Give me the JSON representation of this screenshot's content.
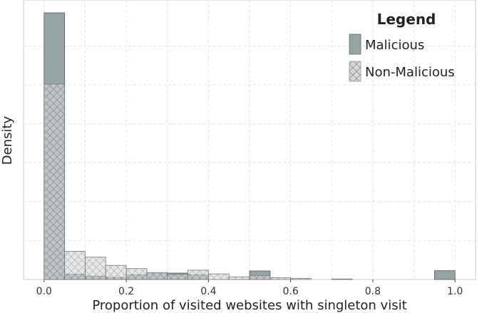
{
  "chart_data": {
    "type": "bar",
    "subtype": "histogram",
    "xlabel": "Proportion of visited websites with singleton visit",
    "ylabel": "Density",
    "xlim": [
      -0.05,
      1.05
    ],
    "ylim": [
      0,
      1
    ],
    "x_ticks": [
      0.0,
      0.2,
      0.4,
      0.6,
      0.8,
      1.0
    ],
    "x_tick_labels": [
      "0.0",
      "0.2",
      "0.4",
      "0.6",
      "0.8",
      "1.0"
    ],
    "y_tick_labels_shown": false,
    "grid": true,
    "bin_width": 0.05,
    "bin_starts": [
      0.0,
      0.05,
      0.1,
      0.15,
      0.2,
      0.25,
      0.3,
      0.35,
      0.4,
      0.45,
      0.5,
      0.55,
      0.6,
      0.65,
      0.7,
      0.75,
      0.8,
      0.85,
      0.9,
      0.95
    ],
    "legend": {
      "title": "Legend",
      "position": "top-right"
    },
    "series": [
      {
        "name": "Malicious",
        "color": "#95a5a6",
        "pattern": "solid",
        "values": [
          1.0,
          0.02,
          0.013,
          0.008,
          0.018,
          0.022,
          0.024,
          0.018,
          0.0,
          0.0,
          0.032,
          0.0,
          0.0,
          0.0,
          0.0,
          0.0,
          0.0,
          0.0,
          0.0,
          0.033
        ]
      },
      {
        "name": "Non-Malicious",
        "color": "#d9d9d9",
        "pattern": "crosshatch",
        "values": [
          0.733,
          0.106,
          0.084,
          0.053,
          0.041,
          0.026,
          0.019,
          0.035,
          0.021,
          0.01,
          0.015,
          0.007,
          0.004,
          0.0,
          0.002,
          0.0,
          0.0,
          0.0,
          0.0,
          0.0
        ]
      }
    ]
  }
}
